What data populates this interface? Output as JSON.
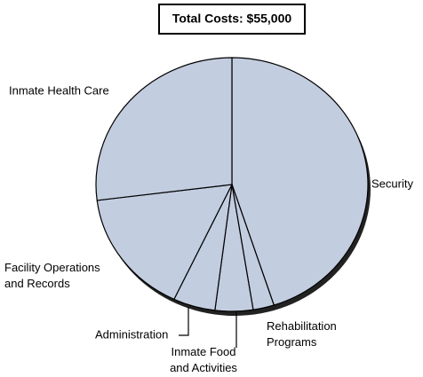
{
  "chart_data": {
    "type": "pie",
    "title": "Total Costs: $55,000",
    "categories": [
      "Security",
      "Rehabilitation\nPrograms",
      "Inmate Food\nand Activities",
      "Administration",
      "Facility Operations\nand Records",
      "Inmate Health Care"
    ],
    "values": [
      45,
      2.5,
      4.5,
      5,
      16,
      27
    ],
    "color": "#c3cde0"
  }
}
